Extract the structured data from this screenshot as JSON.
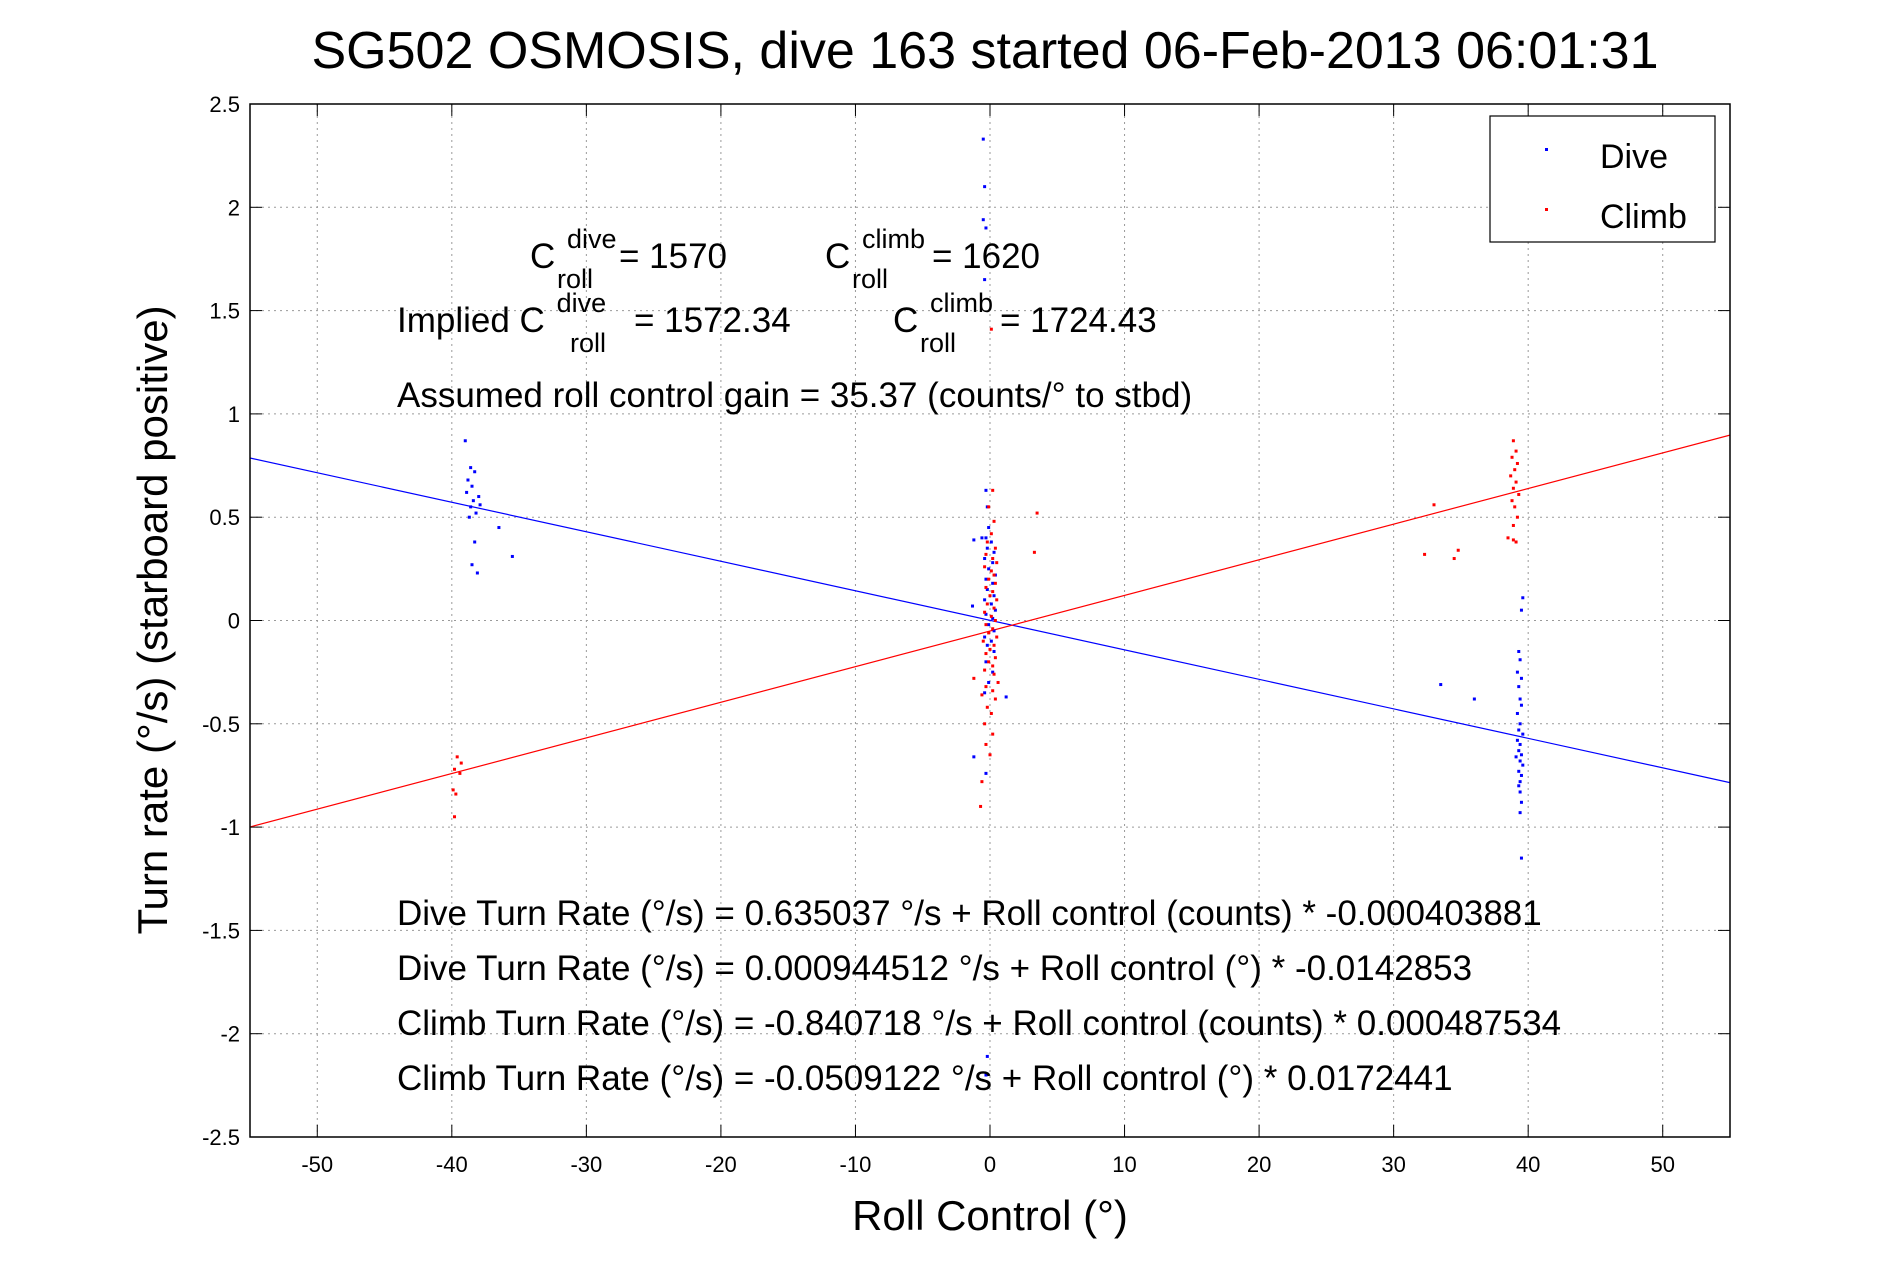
{
  "chart_data": {
    "type": "scatter",
    "title": "SG502 OSMOSIS, dive 163 started 06-Feb-2013 06:01:31",
    "xlabel": "Roll Control (°)",
    "ylabel": "Turn rate (°/s)  (starboard positive)",
    "xlim": [
      -55,
      55
    ],
    "ylim": [
      -2.5,
      2.5
    ],
    "xticks": [
      -50,
      -40,
      -30,
      -20,
      -10,
      0,
      10,
      20,
      30,
      40,
      50
    ],
    "yticks": [
      2.5,
      2,
      1.5,
      1,
      0.5,
      0,
      -0.5,
      -1,
      -1.5,
      -2,
      -2.5
    ],
    "xtick_labels": [
      "-50",
      "-40",
      "-30",
      "-20",
      "-10",
      "0",
      "10",
      "20",
      "30",
      "40",
      "50"
    ],
    "ytick_labels": [
      "2.5",
      "2",
      "1.5",
      "1",
      "0.5",
      "0",
      "-0.5",
      "-1",
      "-1.5",
      "-2",
      "-2.5"
    ],
    "grid": true,
    "legend_position": "top-right",
    "colors": {
      "dive": "#0000ff",
      "climb": "#ff0000"
    },
    "series": [
      {
        "name": "Dive",
        "points": [
          [
            -39.0,
            0.87
          ],
          [
            -38.6,
            0.74
          ],
          [
            -38.3,
            0.72
          ],
          [
            -38.8,
            0.68
          ],
          [
            -38.5,
            0.65
          ],
          [
            -38.9,
            0.62
          ],
          [
            -38.0,
            0.6
          ],
          [
            -38.4,
            0.58
          ],
          [
            -37.9,
            0.56
          ],
          [
            -38.6,
            0.55
          ],
          [
            -38.2,
            0.52
          ],
          [
            -38.7,
            0.5
          ],
          [
            -36.5,
            0.45
          ],
          [
            -38.3,
            0.38
          ],
          [
            -35.5,
            0.31
          ],
          [
            -38.5,
            0.27
          ],
          [
            -38.1,
            0.23
          ],
          [
            -0.5,
            2.33
          ],
          [
            -0.4,
            2.1
          ],
          [
            -0.5,
            1.94
          ],
          [
            -0.3,
            1.9
          ],
          [
            -0.4,
            1.65
          ],
          [
            -0.3,
            0.63
          ],
          [
            -0.2,
            0.55
          ],
          [
            -0.1,
            0.45
          ],
          [
            -0.3,
            0.4
          ],
          [
            -0.6,
            0.4
          ],
          [
            -1.2,
            0.39
          ],
          [
            0.1,
            0.38
          ],
          [
            -0.2,
            0.35
          ],
          [
            0.3,
            0.33
          ],
          [
            -0.4,
            0.3
          ],
          [
            0.2,
            0.28
          ],
          [
            -0.1,
            0.25
          ],
          [
            0.4,
            0.22
          ],
          [
            -0.3,
            0.2
          ],
          [
            0.2,
            0.18
          ],
          [
            -0.2,
            0.15
          ],
          [
            0.3,
            0.12
          ],
          [
            -0.4,
            0.1
          ],
          [
            0.1,
            0.08
          ],
          [
            -1.3,
            0.07
          ],
          [
            0.4,
            0.05
          ],
          [
            -0.3,
            0.03
          ],
          [
            0.2,
            0.01
          ],
          [
            -0.1,
            -0.02
          ],
          [
            0.3,
            -0.05
          ],
          [
            -0.4,
            -0.08
          ],
          [
            0.1,
            -0.1
          ],
          [
            -0.2,
            -0.12
          ],
          [
            0.3,
            -0.15
          ],
          [
            -0.3,
            -0.2
          ],
          [
            0.2,
            -0.25
          ],
          [
            -0.1,
            -0.3
          ],
          [
            1.2,
            -0.37
          ],
          [
            -0.4,
            -0.35
          ],
          [
            -1.2,
            -0.66
          ],
          [
            -0.3,
            -0.74
          ],
          [
            -0.2,
            -2.11
          ],
          [
            -0.3,
            -2.2
          ],
          [
            39.6,
            0.11
          ],
          [
            39.5,
            0.05
          ],
          [
            39.3,
            -0.15
          ],
          [
            39.4,
            -0.19
          ],
          [
            39.2,
            -0.25
          ],
          [
            39.5,
            -0.28
          ],
          [
            39.3,
            -0.32
          ],
          [
            33.5,
            -0.31
          ],
          [
            36.0,
            -0.38
          ],
          [
            39.4,
            -0.38
          ],
          [
            39.5,
            -0.41
          ],
          [
            39.2,
            -0.45
          ],
          [
            39.4,
            -0.5
          ],
          [
            39.3,
            -0.53
          ],
          [
            39.6,
            -0.55
          ],
          [
            39.2,
            -0.58
          ],
          [
            39.4,
            -0.6
          ],
          [
            39.3,
            -0.63
          ],
          [
            39.5,
            -0.65
          ],
          [
            39.1,
            -0.66
          ],
          [
            39.4,
            -0.68
          ],
          [
            39.6,
            -0.7
          ],
          [
            39.3,
            -0.73
          ],
          [
            39.5,
            -0.75
          ],
          [
            39.4,
            -0.78
          ],
          [
            39.3,
            -0.8
          ],
          [
            39.4,
            -0.83
          ],
          [
            39.5,
            -0.88
          ],
          [
            39.4,
            -0.93
          ],
          [
            39.5,
            -1.15
          ]
        ]
      },
      {
        "name": "Climb",
        "points": [
          [
            -39.6,
            -0.66
          ],
          [
            -39.3,
            -0.69
          ],
          [
            -39.8,
            -0.72
          ],
          [
            -39.4,
            -0.74
          ],
          [
            -39.9,
            -0.82
          ],
          [
            -39.7,
            -0.84
          ],
          [
            -39.8,
            -0.95
          ],
          [
            0.1,
            1.41
          ],
          [
            0.2,
            0.63
          ],
          [
            -0.1,
            0.55
          ],
          [
            0.3,
            0.48
          ],
          [
            0.1,
            0.42
          ],
          [
            -0.2,
            0.38
          ],
          [
            0.4,
            0.35
          ],
          [
            -0.3,
            0.32
          ],
          [
            0.2,
            0.3
          ],
          [
            0.5,
            0.28
          ],
          [
            -0.4,
            0.26
          ],
          [
            0.1,
            0.24
          ],
          [
            0.3,
            0.22
          ],
          [
            -0.1,
            0.2
          ],
          [
            0.4,
            0.18
          ],
          [
            -0.3,
            0.16
          ],
          [
            0.2,
            0.14
          ],
          [
            0.0,
            0.12
          ],
          [
            0.5,
            0.1
          ],
          [
            -0.2,
            0.08
          ],
          [
            0.3,
            0.06
          ],
          [
            -0.4,
            0.04
          ],
          [
            0.1,
            0.02
          ],
          [
            0.4,
            0.0
          ],
          [
            -0.3,
            -0.02
          ],
          [
            0.2,
            -0.04
          ],
          [
            -0.1,
            -0.06
          ],
          [
            0.5,
            -0.08
          ],
          [
            -0.5,
            -0.1
          ],
          [
            0.3,
            -0.12
          ],
          [
            0.0,
            -0.14
          ],
          [
            -0.3,
            -0.16
          ],
          [
            0.4,
            -0.18
          ],
          [
            -0.1,
            -0.2
          ],
          [
            0.2,
            -0.22
          ],
          [
            -0.4,
            -0.24
          ],
          [
            0.3,
            -0.26
          ],
          [
            -1.2,
            -0.28
          ],
          [
            0.6,
            -0.3
          ],
          [
            -0.3,
            -0.32
          ],
          [
            0.2,
            -0.34
          ],
          [
            -0.6,
            -0.36
          ],
          [
            0.4,
            -0.38
          ],
          [
            -0.2,
            -0.42
          ],
          [
            0.1,
            -0.45
          ],
          [
            -0.4,
            -0.5
          ],
          [
            0.2,
            -0.55
          ],
          [
            -0.3,
            -0.6
          ],
          [
            0.0,
            -0.65
          ],
          [
            -0.6,
            -0.78
          ],
          [
            -0.7,
            -0.9
          ],
          [
            3.5,
            0.52
          ],
          [
            3.3,
            0.33
          ],
          [
            38.9,
            0.87
          ],
          [
            39.1,
            0.82
          ],
          [
            38.8,
            0.79
          ],
          [
            39.2,
            0.76
          ],
          [
            39.0,
            0.73
          ],
          [
            38.7,
            0.7
          ],
          [
            39.1,
            0.67
          ],
          [
            38.9,
            0.64
          ],
          [
            39.3,
            0.61
          ],
          [
            38.8,
            0.58
          ],
          [
            39.0,
            0.55
          ],
          [
            39.2,
            0.5
          ],
          [
            38.9,
            0.46
          ],
          [
            33.0,
            0.56
          ],
          [
            38.5,
            0.4
          ],
          [
            38.9,
            0.39
          ],
          [
            39.1,
            0.38
          ],
          [
            34.8,
            0.34
          ],
          [
            32.3,
            0.32
          ],
          [
            34.5,
            0.3
          ]
        ]
      }
    ],
    "fit_lines": [
      {
        "name": "Dive",
        "slope": -0.0142853,
        "intercept": 0.000944512
      },
      {
        "name": "Climb",
        "slope": 0.0172441,
        "intercept": -0.0509122
      }
    ],
    "annotations": {
      "c_dive_base": "C",
      "c_dive_sup": "dive",
      "c_dive_sub": "roll",
      "c_dive_value": " = 1570",
      "c_climb_base": "C",
      "c_climb_sup": "climb",
      "c_climb_sub": "roll",
      "c_climb_value": " = 1620",
      "implied_prefix": "Implied C",
      "implied_dive_sup": "dive",
      "implied_dive_sub": "roll",
      "implied_dive_value": " = 1572.34",
      "implied_climb_base": "C",
      "implied_climb_sup": "climb",
      "implied_climb_sub": "roll",
      "implied_climb_value": " = 1724.43",
      "gain": "Assumed roll control gain = 35.37 (counts/° to stbd)",
      "eq1": "Dive Turn Rate (°/s) = 0.635037 °/s + Roll control (counts) * -0.000403881",
      "eq2": "Dive Turn Rate (°/s) = 0.000944512 °/s + Roll control (°) * -0.0142853",
      "eq3": "Climb Turn Rate (°/s) = -0.840718 °/s + Roll control (counts) * 0.000487534",
      "eq4": "Climb Turn Rate (°/s) = -0.0509122 °/s + Roll control (°) * 0.0172441"
    },
    "legend": [
      "Dive",
      "Climb"
    ]
  }
}
